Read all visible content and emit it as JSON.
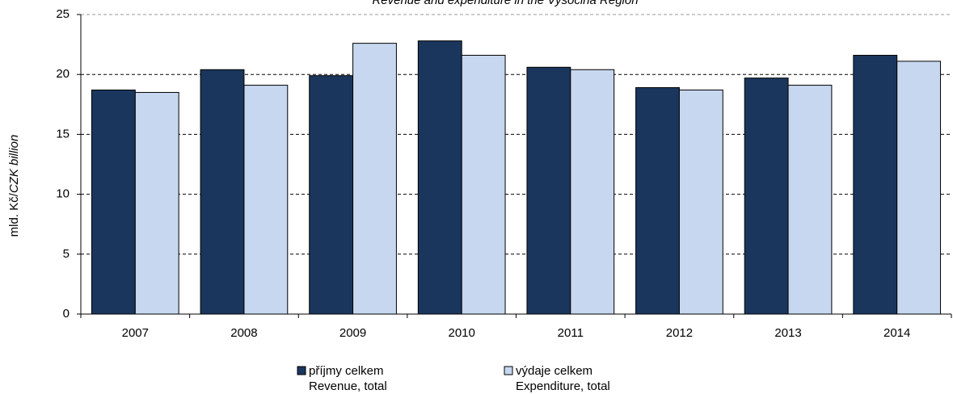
{
  "chart_data": {
    "type": "bar",
    "title": "Revenue and expenditure in the Vysočina Region",
    "ylabel": [
      "mld. Kč/",
      "CZK billion"
    ],
    "categories": [
      "2007",
      "2008",
      "2009",
      "2010",
      "2011",
      "2012",
      "2013",
      "2014"
    ],
    "series": [
      {
        "name": "příjmy celkem",
        "name_en": "Revenue, total",
        "color": "#1b365d",
        "values": [
          18.7,
          20.4,
          19.9,
          22.8,
          20.6,
          18.9,
          19.7,
          21.6
        ]
      },
      {
        "name": "výdaje celkem",
        "name_en": "Expenditure, total",
        "color": "#c6d7ef",
        "values": [
          18.5,
          19.1,
          22.6,
          21.6,
          20.4,
          18.7,
          19.1,
          21.1
        ]
      }
    ],
    "ylim": [
      0,
      25
    ],
    "yticks": [
      0,
      5,
      10,
      15,
      20,
      25
    ],
    "grid": true
  }
}
